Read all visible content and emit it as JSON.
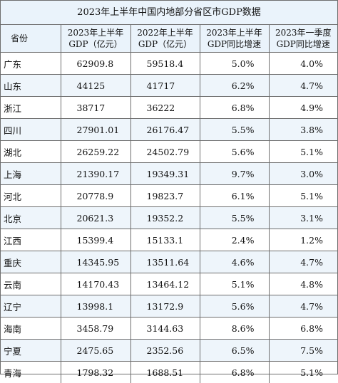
{
  "title": "2023年上半年中国内地部分省区市GDP数据",
  "columns": [
    "省份",
    "2023年上半年GDP（亿元）",
    "2022年上半年GDP（亿元）",
    "2023年上半年GDP同比增速",
    "2023年一季度GDP同比增速"
  ],
  "rows": [
    {
      "province": "广东",
      "gdp_2023h1": "62909.8",
      "gdp_2022h1": "59518.4",
      "growth_2023h1": "5.0%",
      "growth_2023q1": "4.0%"
    },
    {
      "province": "山东",
      "gdp_2023h1": "44125",
      "gdp_2022h1": "41717",
      "growth_2023h1": "6.2%",
      "growth_2023q1": "4.7%"
    },
    {
      "province": "浙江",
      "gdp_2023h1": "38717",
      "gdp_2022h1": "36222",
      "growth_2023h1": "6.8%",
      "growth_2023q1": "4.9%"
    },
    {
      "province": "四川",
      "gdp_2023h1": "27901.01",
      "gdp_2022h1": "26176.47",
      "growth_2023h1": "5.5%",
      "growth_2023q1": "3.8%"
    },
    {
      "province": "湖北",
      "gdp_2023h1": "26259.22",
      "gdp_2022h1": "24502.79",
      "growth_2023h1": "5.6%",
      "growth_2023q1": "5.1%"
    },
    {
      "province": "上海",
      "gdp_2023h1": "21390.17",
      "gdp_2022h1": "19349.31",
      "growth_2023h1": "9.7%",
      "growth_2023q1": "3.0%"
    },
    {
      "province": "河北",
      "gdp_2023h1": "20778.9",
      "gdp_2022h1": "19823.7",
      "growth_2023h1": "6.1%",
      "growth_2023q1": "5.1%"
    },
    {
      "province": "北京",
      "gdp_2023h1": "20621.3",
      "gdp_2022h1": "19352.2",
      "growth_2023h1": "5.5%",
      "growth_2023q1": "3.1%"
    },
    {
      "province": "江西",
      "gdp_2023h1": "15399.4",
      "gdp_2022h1": "15133.1",
      "growth_2023h1": "2.4%",
      "growth_2023q1": "1.2%"
    },
    {
      "province": "重庆",
      "gdp_2023h1": "14345.95",
      "gdp_2022h1": "13511.64",
      "growth_2023h1": "4.6%",
      "growth_2023q1": "4.7%"
    },
    {
      "province": "云南",
      "gdp_2023h1": "14170.43",
      "gdp_2022h1": "13464.12",
      "growth_2023h1": "5.1%",
      "growth_2023q1": "4.8%"
    },
    {
      "province": "辽宁",
      "gdp_2023h1": "13998.1",
      "gdp_2022h1": "13172.9",
      "growth_2023h1": "5.6%",
      "growth_2023q1": "4.7%"
    },
    {
      "province": "海南",
      "gdp_2023h1": "3458.79",
      "gdp_2022h1": "3144.63",
      "growth_2023h1": "8.6%",
      "growth_2023q1": "6.8%"
    },
    {
      "province": "宁夏",
      "gdp_2023h1": "2475.65",
      "gdp_2022h1": "2352.56",
      "growth_2023h1": "6.5%",
      "growth_2023q1": "7.5%"
    },
    {
      "province": "青海",
      "gdp_2023h1": "1798.32",
      "gdp_2022h1": "1688.51",
      "growth_2023h1": "6.8%",
      "growth_2023q1": "5.1%"
    }
  ],
  "colors": {
    "header_bg": "#eaf3fb",
    "stripe_bg": "#eef5fb",
    "border": "#6e6e6e"
  }
}
